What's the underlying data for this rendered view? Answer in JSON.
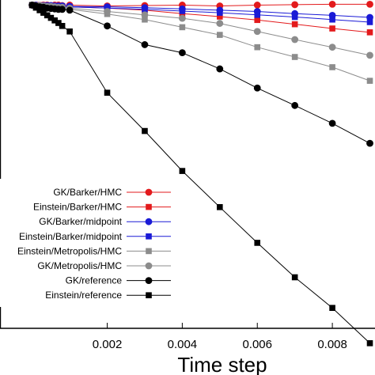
{
  "chart_data": {
    "type": "line",
    "xlabel": "Time step",
    "ylabel": "",
    "xlim": [
      -0.0009,
      0.0092
    ],
    "ylim": [
      -0.76,
      0.012
    ],
    "x_ticks": [
      "0.002",
      "0.004",
      "0.006",
      "0.008"
    ],
    "grid": false,
    "legend_position": "bottom-left",
    "series": [
      {
        "name": "GK/Barker/HMC",
        "color": "#e31a1c",
        "marker": "circle",
        "x": [
          0.0,
          0.0001,
          0.0002,
          0.0003,
          0.0004,
          0.0005,
          0.0006,
          0.0007,
          0.0008,
          0.001,
          0.002,
          0.003,
          0.004,
          0.005,
          0.006,
          0.007,
          0.008,
          0.009
        ],
        "y": [
          0.0,
          0.0,
          -0.001,
          0.0,
          0.0,
          -0.001,
          0.0,
          0.0,
          -0.001,
          0.0,
          -0.002,
          -0.001,
          0.0,
          -0.002,
          0.0,
          0.001,
          0.002,
          0.002
        ]
      },
      {
        "name": "Einstein/Barker/HMC",
        "color": "#e31a1c",
        "marker": "square",
        "x": [
          0.0,
          0.0001,
          0.0002,
          0.0003,
          0.0004,
          0.0005,
          0.0006,
          0.0007,
          0.0008,
          0.001,
          0.002,
          0.003,
          0.004,
          0.005,
          0.006,
          0.007,
          0.008,
          0.009
        ],
        "y": [
          0.0,
          0.0,
          0.0,
          -0.001,
          -0.001,
          -0.001,
          -0.002,
          -0.002,
          -0.003,
          -0.004,
          -0.007,
          -0.012,
          -0.02,
          -0.027,
          -0.035,
          -0.045,
          -0.055,
          -0.064
        ]
      },
      {
        "name": "GK/Barker/midpoint",
        "color": "#1a1ad6",
        "marker": "circle",
        "x": [
          0.0,
          0.0001,
          0.0002,
          0.0003,
          0.0004,
          0.0005,
          0.0006,
          0.0007,
          0.0008,
          0.001,
          0.002,
          0.003,
          0.004,
          0.005,
          0.006,
          0.007,
          0.008,
          0.009
        ],
        "y": [
          0.0,
          0.0,
          -0.001,
          -0.001,
          -0.001,
          -0.001,
          -0.002,
          -0.002,
          -0.002,
          -0.003,
          -0.004,
          -0.006,
          -0.009,
          -0.012,
          -0.015,
          -0.02,
          -0.024,
          -0.029
        ]
      },
      {
        "name": "Einstein/Barker/midpoint",
        "color": "#1a1ad6",
        "marker": "square",
        "x": [
          0.0,
          0.0001,
          0.0002,
          0.0003,
          0.0004,
          0.0005,
          0.0006,
          0.0007,
          0.0008,
          0.001,
          0.002,
          0.003,
          0.004,
          0.005,
          0.006,
          0.007,
          0.008,
          0.009
        ],
        "y": [
          0.0,
          -0.001,
          -0.001,
          -0.002,
          -0.002,
          -0.002,
          -0.003,
          -0.003,
          -0.003,
          -0.004,
          -0.007,
          -0.01,
          -0.014,
          -0.018,
          -0.023,
          -0.028,
          -0.034,
          -0.04
        ]
      },
      {
        "name": "Einstein/Metropolis/HMC",
        "color": "#8c8c8c",
        "marker": "square",
        "x": [
          0.0,
          0.0001,
          0.0002,
          0.0003,
          0.0004,
          0.0005,
          0.0006,
          0.0007,
          0.0008,
          0.001,
          0.002,
          0.003,
          0.004,
          0.005,
          0.006,
          0.007,
          0.008,
          0.009
        ],
        "y": [
          0.0,
          -0.001,
          -0.002,
          -0.003,
          -0.004,
          -0.005,
          -0.006,
          -0.007,
          -0.008,
          -0.01,
          -0.021,
          -0.034,
          -0.052,
          -0.07,
          -0.099,
          -0.122,
          -0.146,
          -0.178
        ]
      },
      {
        "name": "GK/Metropolis/HMC",
        "color": "#8c8c8c",
        "marker": "circle",
        "x": [
          0.0,
          0.0001,
          0.0002,
          0.0003,
          0.0004,
          0.0005,
          0.0006,
          0.0007,
          0.0008,
          0.001,
          0.002,
          0.003,
          0.004,
          0.005,
          0.006,
          0.007,
          0.008,
          0.009
        ],
        "y": [
          0.0,
          -0.001,
          -0.001,
          -0.002,
          -0.003,
          -0.003,
          -0.004,
          -0.005,
          -0.005,
          -0.007,
          -0.015,
          -0.023,
          -0.031,
          -0.043,
          -0.062,
          -0.081,
          -0.099,
          -0.118
        ]
      },
      {
        "name": "GK/reference",
        "color": "#000000",
        "marker": "circle",
        "x": [
          0.0,
          0.0001,
          0.0002,
          0.0003,
          0.0004,
          0.0005,
          0.0006,
          0.0007,
          0.0008,
          0.001,
          0.002,
          0.003,
          0.004,
          0.005,
          0.006,
          0.007,
          0.008,
          0.009
        ],
        "y": [
          0.0,
          -0.002,
          -0.004,
          -0.005,
          -0.007,
          -0.008,
          -0.009,
          -0.01,
          -0.01,
          -0.012,
          -0.049,
          -0.093,
          -0.112,
          -0.15,
          -0.195,
          -0.236,
          -0.278,
          -0.325
        ]
      },
      {
        "name": "Einstein/reference",
        "color": "#000000",
        "marker": "square",
        "x": [
          0.0,
          0.0001,
          0.0002,
          0.0003,
          0.0004,
          0.0005,
          0.0006,
          0.0007,
          0.0008,
          0.001,
          0.002,
          0.003,
          0.004,
          0.005,
          0.006,
          0.007,
          0.008,
          0.009
        ],
        "y": [
          0.0,
          -0.006,
          -0.012,
          -0.018,
          -0.024,
          -0.03,
          -0.036,
          -0.042,
          -0.049,
          -0.062,
          -0.206,
          -0.296,
          -0.39,
          -0.475,
          -0.559,
          -0.64,
          -0.712,
          -0.795
        ]
      }
    ]
  }
}
